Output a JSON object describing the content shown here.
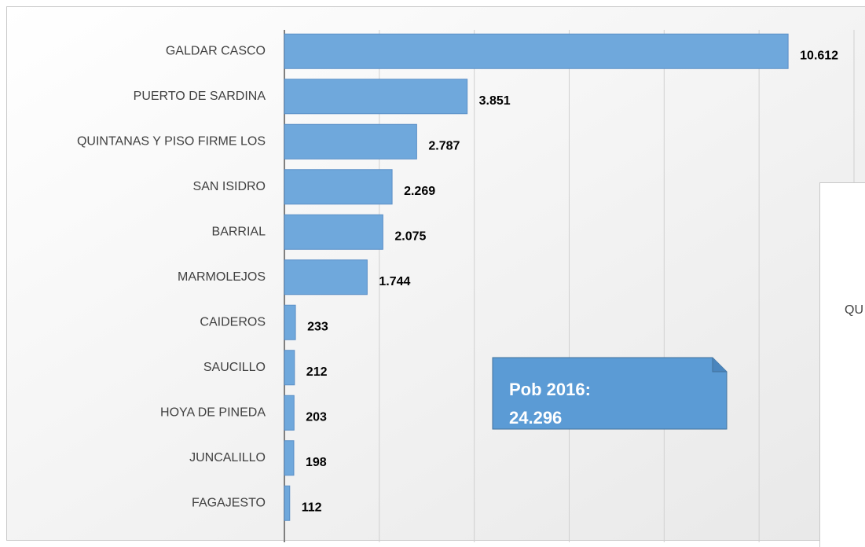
{
  "chart_data": {
    "type": "hbar",
    "categories": [
      "GALDAR CASCO",
      "PUERTO DE SARDINA",
      "QUINTANAS Y PISO FIRME LOS",
      "SAN ISIDRO",
      "BARRIAL",
      "MARMOLEJOS",
      "CAIDEROS",
      "SAUCILLO",
      "HOYA DE PINEDA",
      "JUNCALILLO",
      "FAGAJESTO"
    ],
    "values": [
      10612,
      3851,
      2787,
      2269,
      2075,
      1744,
      233,
      212,
      203,
      198,
      112
    ],
    "value_labels": [
      "10.612",
      "3.851",
      "2.787",
      "2.269",
      "2.075",
      "1.744",
      "233",
      "212",
      "203",
      "198",
      "112"
    ],
    "color": "#6fa8dc",
    "xlim": [
      0,
      12000
    ],
    "xticks": [
      0,
      2000,
      4000,
      6000,
      8000,
      10000,
      12000
    ],
    "grid": true,
    "annotation": [
      "Pob 2016:",
      "24.296"
    ],
    "side_panel_text": "QU"
  }
}
